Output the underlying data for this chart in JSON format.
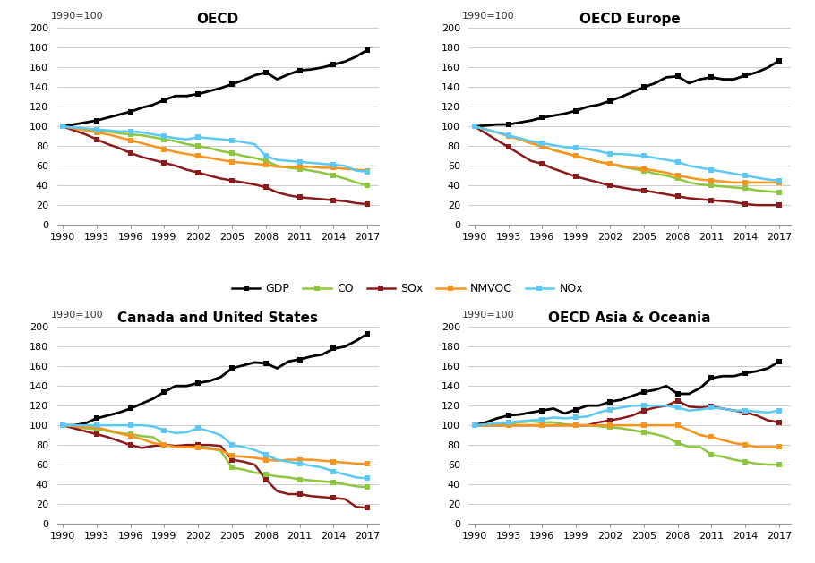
{
  "years": [
    1990,
    1991,
    1992,
    1993,
    1994,
    1995,
    1996,
    1997,
    1998,
    1999,
    2000,
    2001,
    2002,
    2003,
    2004,
    2005,
    2006,
    2007,
    2008,
    2009,
    2010,
    2011,
    2012,
    2013,
    2014,
    2015,
    2016,
    2017
  ],
  "panels": {
    "OECD": {
      "GDP": [
        100,
        102,
        104,
        106,
        109,
        112,
        115,
        119,
        122,
        127,
        131,
        131,
        133,
        136,
        139,
        143,
        147,
        152,
        155,
        148,
        153,
        157,
        158,
        160,
        163,
        166,
        171,
        178
      ],
      "CO": [
        100,
        98,
        97,
        96,
        95,
        93,
        92,
        91,
        89,
        87,
        85,
        82,
        80,
        78,
        75,
        73,
        70,
        68,
        65,
        60,
        58,
        57,
        55,
        53,
        50,
        47,
        43,
        40
      ],
      "SOx": [
        100,
        96,
        92,
        87,
        82,
        78,
        73,
        69,
        66,
        63,
        60,
        56,
        53,
        50,
        47,
        45,
        43,
        41,
        38,
        33,
        30,
        28,
        27,
        26,
        25,
        24,
        22,
        21
      ],
      "NMVOC": [
        100,
        98,
        96,
        94,
        92,
        89,
        86,
        83,
        80,
        77,
        74,
        72,
        70,
        68,
        66,
        64,
        63,
        62,
        61,
        59,
        59,
        59,
        59,
        58,
        58,
        57,
        56,
        55
      ],
      "NOx": [
        100,
        99,
        98,
        97,
        96,
        95,
        95,
        94,
        92,
        90,
        88,
        87,
        89,
        88,
        87,
        86,
        84,
        82,
        70,
        66,
        65,
        64,
        63,
        62,
        61,
        60,
        55,
        54
      ]
    },
    "OECD Europe": {
      "GDP": [
        100,
        101,
        102,
        102,
        104,
        106,
        109,
        111,
        113,
        116,
        120,
        122,
        126,
        130,
        135,
        140,
        144,
        150,
        151,
        144,
        148,
        150,
        148,
        148,
        152,
        155,
        160,
        167
      ],
      "CO": [
        100,
        97,
        94,
        91,
        87,
        83,
        80,
        76,
        73,
        70,
        67,
        64,
        62,
        59,
        57,
        55,
        52,
        50,
        47,
        43,
        41,
        40,
        39,
        38,
        37,
        35,
        34,
        33
      ],
      "SOx": [
        100,
        93,
        86,
        79,
        72,
        65,
        62,
        57,
        53,
        49,
        46,
        43,
        40,
        38,
        36,
        35,
        33,
        31,
        29,
        27,
        26,
        25,
        24,
        23,
        21,
        20,
        20,
        20
      ],
      "NMVOC": [
        100,
        97,
        94,
        90,
        87,
        83,
        80,
        76,
        73,
        70,
        67,
        64,
        62,
        60,
        58,
        57,
        55,
        53,
        50,
        48,
        46,
        45,
        44,
        43,
        43,
        43,
        43,
        43
      ],
      "NOx": [
        100,
        97,
        94,
        91,
        88,
        85,
        83,
        81,
        79,
        78,
        77,
        75,
        72,
        72,
        71,
        70,
        68,
        66,
        64,
        60,
        58,
        56,
        54,
        52,
        50,
        48,
        46,
        45
      ]
    },
    "Canada and United States": {
      "GDP": [
        100,
        100,
        102,
        107,
        110,
        113,
        117,
        122,
        127,
        134,
        140,
        140,
        143,
        145,
        149,
        158,
        161,
        164,
        163,
        158,
        165,
        167,
        170,
        172,
        178,
        180,
        186,
        193
      ],
      "CO": [
        100,
        99,
        97,
        96,
        94,
        92,
        91,
        89,
        88,
        80,
        79,
        78,
        78,
        77,
        74,
        57,
        55,
        52,
        50,
        48,
        47,
        45,
        44,
        43,
        42,
        40,
        38,
        37
      ],
      "SOx": [
        100,
        97,
        94,
        91,
        88,
        84,
        80,
        77,
        79,
        80,
        79,
        80,
        80,
        80,
        79,
        65,
        63,
        60,
        45,
        33,
        30,
        30,
        28,
        27,
        26,
        25,
        17,
        16
      ],
      "NMVOC": [
        100,
        99,
        98,
        98,
        95,
        92,
        89,
        86,
        82,
        80,
        78,
        78,
        77,
        76,
        75,
        69,
        68,
        67,
        65,
        64,
        65,
        65,
        65,
        64,
        63,
        62,
        61,
        61
      ],
      "NOx": [
        100,
        100,
        100,
        100,
        100,
        100,
        100,
        100,
        99,
        95,
        92,
        93,
        97,
        94,
        90,
        80,
        78,
        75,
        70,
        65,
        63,
        61,
        59,
        57,
        53,
        50,
        47,
        46
      ]
    },
    "OECD Asia & Oceania": {
      "GDP": [
        100,
        103,
        107,
        110,
        111,
        113,
        115,
        117,
        112,
        116,
        120,
        120,
        124,
        126,
        130,
        134,
        136,
        140,
        132,
        132,
        138,
        148,
        150,
        150,
        153,
        155,
        158,
        165
      ],
      "CO": [
        100,
        100,
        101,
        102,
        103,
        104,
        103,
        103,
        101,
        100,
        100,
        99,
        98,
        97,
        95,
        93,
        91,
        88,
        82,
        78,
        78,
        70,
        68,
        65,
        63,
        61,
        60,
        60
      ],
      "SOx": [
        100,
        100,
        100,
        100,
        100,
        100,
        100,
        100,
        100,
        100,
        100,
        103,
        105,
        107,
        110,
        115,
        118,
        120,
        125,
        119,
        118,
        119,
        117,
        115,
        113,
        110,
        105,
        103
      ],
      "NMVOC": [
        100,
        100,
        100,
        100,
        100,
        100,
        100,
        100,
        100,
        100,
        100,
        100,
        100,
        100,
        100,
        100,
        100,
        100,
        100,
        95,
        90,
        88,
        85,
        82,
        80,
        78,
        78,
        78
      ],
      "NOx": [
        100,
        101,
        102,
        103,
        104,
        105,
        106,
        108,
        107,
        108,
        109,
        113,
        116,
        118,
        120,
        120,
        120,
        120,
        118,
        115,
        116,
        118,
        117,
        115,
        115,
        114,
        113,
        115
      ]
    }
  },
  "colors": {
    "GDP": "#000000",
    "CO": "#8dc63f",
    "SOx": "#8b1a1a",
    "NMVOC": "#f7941d",
    "NOx": "#5bc8f5"
  },
  "panel_titles": [
    "OECD",
    "OECD Europe",
    "Canada and United States",
    "OECD Asia & Oceania"
  ],
  "ylabel": "1990=100",
  "ylim": [
    0,
    200
  ],
  "yticks": [
    0,
    20,
    40,
    60,
    80,
    100,
    120,
    140,
    160,
    180,
    200
  ],
  "xtick_years": [
    1990,
    1993,
    1996,
    1999,
    2002,
    2005,
    2008,
    2011,
    2014,
    2017
  ],
  "legend_labels": [
    "GDP",
    "CO",
    "SOx",
    "NMVOC",
    "NOx"
  ],
  "background_color": "#ffffff",
  "grid_color": "#cccccc"
}
